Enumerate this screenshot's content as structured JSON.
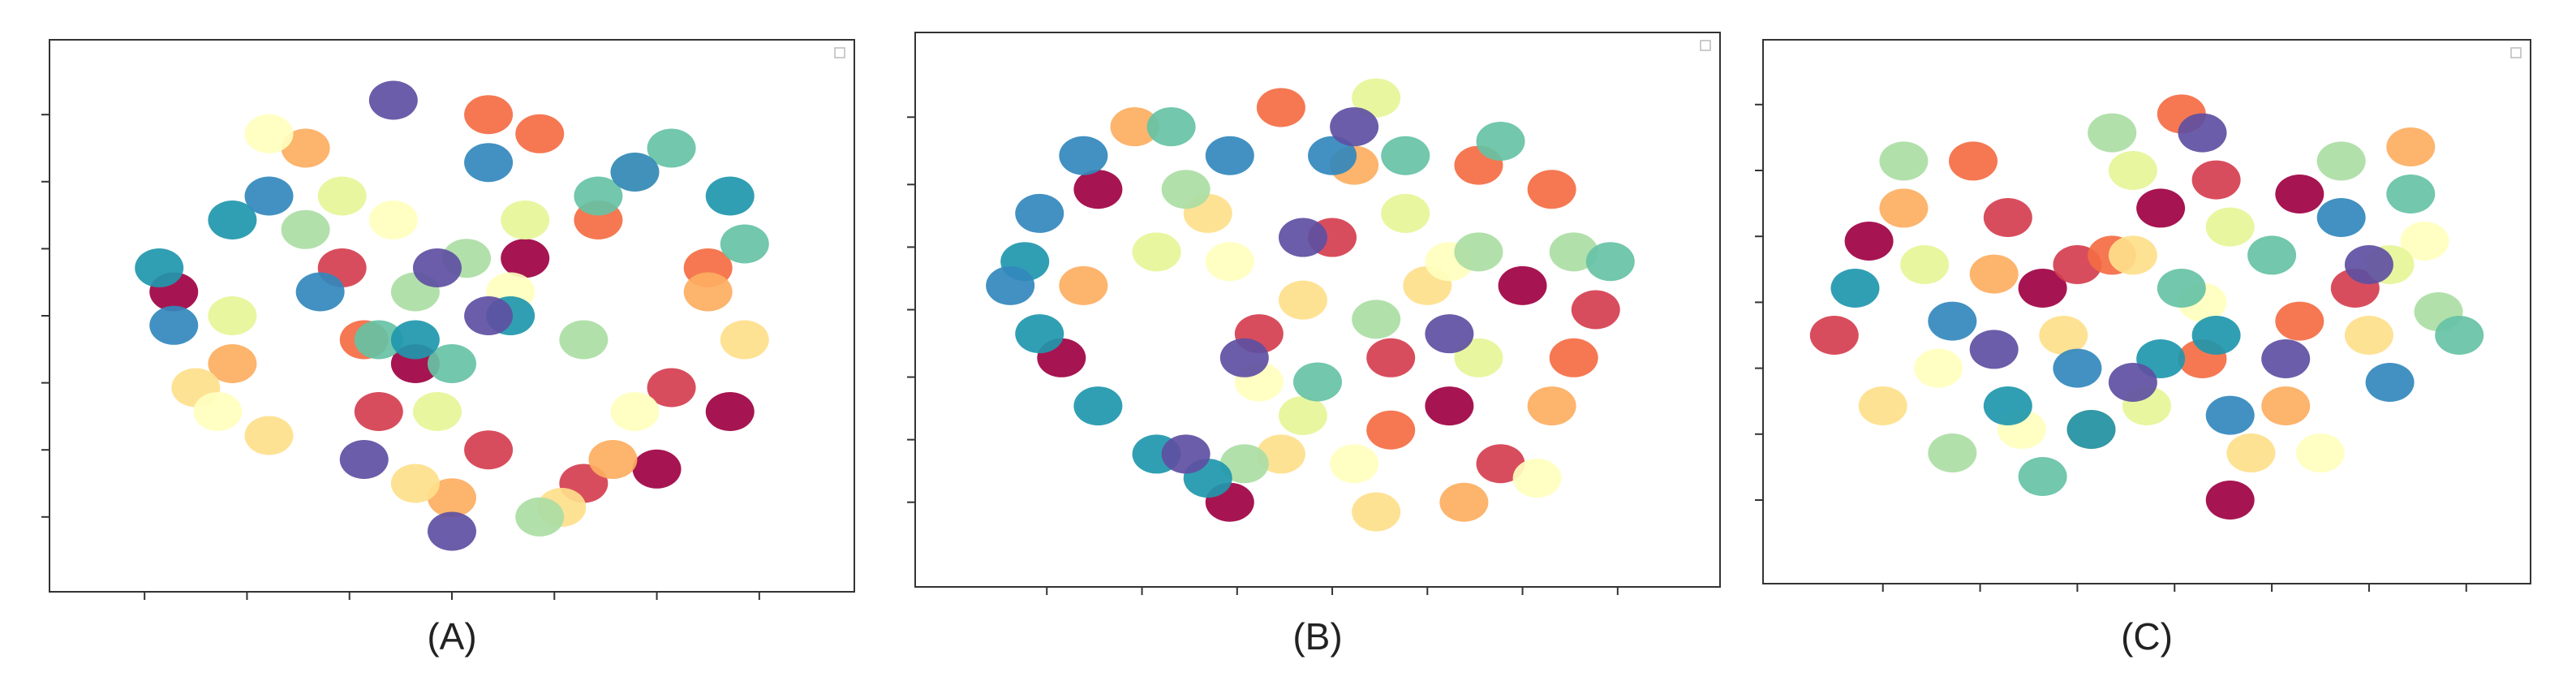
{
  "chart_data": [
    {
      "type": "scatter",
      "label": "(A)",
      "xlim": [
        0,
        100
      ],
      "ylim": [
        0,
        100
      ],
      "xticks": [
        8,
        22,
        36,
        50,
        64,
        78,
        92
      ],
      "yticks": [
        8,
        22,
        36,
        50,
        64,
        78,
        92
      ],
      "series": [
        {
          "color": "#9e0142",
          "x": [
            12,
            45,
            78,
            88,
            60
          ],
          "y": [
            55,
            40,
            18,
            30,
            62
          ]
        },
        {
          "color": "#d53e4f",
          "x": [
            40,
            55,
            68,
            80,
            35
          ],
          "y": [
            30,
            22,
            15,
            35,
            60
          ]
        },
        {
          "color": "#f46d43",
          "x": [
            55,
            62,
            70,
            38,
            85
          ],
          "y": [
            92,
            88,
            70,
            45,
            60
          ]
        },
        {
          "color": "#fdae61",
          "x": [
            30,
            72,
            85,
            20,
            50
          ],
          "y": [
            85,
            20,
            55,
            40,
            12
          ]
        },
        {
          "color": "#fee08b",
          "x": [
            15,
            25,
            45,
            65,
            90
          ],
          "y": [
            35,
            25,
            15,
            10,
            45
          ]
        },
        {
          "color": "#ffffbf",
          "x": [
            25,
            18,
            75,
            42,
            58
          ],
          "y": [
            88,
            30,
            30,
            70,
            55
          ]
        },
        {
          "color": "#e6f598",
          "x": [
            35,
            60,
            75,
            48,
            20
          ],
          "y": [
            75,
            70,
            80,
            30,
            50
          ]
        },
        {
          "color": "#abdda4",
          "x": [
            45,
            52,
            68,
            30,
            62
          ],
          "y": [
            55,
            62,
            45,
            68,
            8
          ]
        },
        {
          "color": "#66c2a5",
          "x": [
            80,
            90,
            70,
            50,
            40
          ],
          "y": [
            85,
            65,
            75,
            40,
            45
          ]
        },
        {
          "color": "#1f97ad",
          "x": [
            20,
            10,
            45,
            58,
            88
          ],
          "y": [
            70,
            60,
            45,
            50,
            75
          ]
        },
        {
          "color": "#3288bd",
          "x": [
            25,
            32,
            55,
            75,
            12
          ],
          "y": [
            75,
            55,
            82,
            80,
            48
          ]
        },
        {
          "color": "#5e4fa2",
          "x": [
            42,
            48,
            38,
            55,
            50
          ],
          "y": [
            95,
            60,
            20,
            50,
            5
          ]
        }
      ]
    },
    {
      "type": "scatter",
      "label": "(B)",
      "xlim": [
        0,
        100
      ],
      "ylim": [
        0,
        100
      ],
      "xticks": [
        13,
        26,
        39,
        52,
        65,
        78,
        91
      ],
      "yticks": [
        10,
        23,
        36,
        50,
        63,
        76,
        90
      ],
      "series": [
        {
          "color": "#9e0142",
          "x": [
            20,
            15,
            68,
            78,
            38
          ],
          "y": [
            75,
            40,
            30,
            55,
            10
          ]
        },
        {
          "color": "#d53e4f",
          "x": [
            52,
            60,
            75,
            88,
            42
          ],
          "y": [
            65,
            40,
            18,
            50,
            45
          ]
        },
        {
          "color": "#f46d43",
          "x": [
            45,
            72,
            85,
            60,
            82
          ],
          "y": [
            92,
            80,
            40,
            25,
            75
          ]
        },
        {
          "color": "#fdae61",
          "x": [
            25,
            18,
            55,
            82,
            70
          ],
          "y": [
            88,
            55,
            80,
            30,
            10
          ]
        },
        {
          "color": "#fee08b",
          "x": [
            35,
            48,
            65,
            45,
            58
          ],
          "y": [
            70,
            52,
            55,
            20,
            8
          ]
        },
        {
          "color": "#ffffbf",
          "x": [
            38,
            42,
            55,
            68,
            80
          ],
          "y": [
            60,
            35,
            18,
            60,
            15
          ]
        },
        {
          "color": "#e6f598",
          "x": [
            28,
            48,
            62,
            72,
            58
          ],
          "y": [
            62,
            28,
            70,
            40,
            94
          ]
        },
        {
          "color": "#abdda4",
          "x": [
            32,
            58,
            72,
            85,
            40
          ],
          "y": [
            75,
            48,
            62,
            62,
            18
          ]
        },
        {
          "color": "#66c2a5",
          "x": [
            62,
            75,
            90,
            30,
            50
          ],
          "y": [
            82,
            85,
            60,
            88,
            35
          ]
        },
        {
          "color": "#1f97ad",
          "x": [
            10,
            20,
            28,
            12,
            35
          ],
          "y": [
            60,
            30,
            20,
            45,
            15
          ]
        },
        {
          "color": "#3288bd",
          "x": [
            12,
            18,
            38,
            52,
            8
          ],
          "y": [
            70,
            82,
            82,
            82,
            55
          ]
        },
        {
          "color": "#5e4fa2",
          "x": [
            40,
            32,
            55,
            48,
            68
          ],
          "y": [
            40,
            20,
            88,
            65,
            45
          ]
        }
      ]
    },
    {
      "type": "scatter",
      "label": "(C)",
      "xlim": [
        0,
        100
      ],
      "ylim": [
        0,
        100
      ],
      "xticks": [
        12,
        26,
        40,
        54,
        68,
        82,
        96
      ],
      "yticks": [
        10,
        24,
        38,
        52,
        66,
        80,
        94
      ],
      "series": [
        {
          "color": "#9e0142",
          "x": [
            10,
            35,
            52,
            72,
            62
          ],
          "y": [
            65,
            55,
            72,
            75,
            10
          ]
        },
        {
          "color": "#d53e4f",
          "x": [
            5,
            40,
            60,
            80,
            30
          ],
          "y": [
            45,
            60,
            78,
            55,
            70
          ]
        },
        {
          "color": "#f46d43",
          "x": [
            25,
            45,
            55,
            58,
            72
          ],
          "y": [
            82,
            62,
            92,
            40,
            48
          ]
        },
        {
          "color": "#fdae61",
          "x": [
            15,
            28,
            70,
            88,
            42
          ],
          "y": [
            72,
            58,
            30,
            85,
            25
          ]
        },
        {
          "color": "#fee08b",
          "x": [
            12,
            38,
            65,
            82,
            48
          ],
          "y": [
            30,
            45,
            20,
            45,
            62
          ]
        },
        {
          "color": "#ffffbf",
          "x": [
            20,
            32,
            58,
            75,
            90
          ],
          "y": [
            38,
            25,
            52,
            20,
            65
          ]
        },
        {
          "color": "#e6f598",
          "x": [
            18,
            48,
            62,
            85,
            50
          ],
          "y": [
            60,
            80,
            68,
            60,
            30
          ]
        },
        {
          "color": "#abdda4",
          "x": [
            15,
            45,
            78,
            92,
            22
          ],
          "y": [
            82,
            88,
            82,
            50,
            20
          ]
        },
        {
          "color": "#66c2a5",
          "x": [
            68,
            88,
            95,
            55,
            35
          ],
          "y": [
            62,
            75,
            45,
            55,
            15
          ]
        },
        {
          "color": "#1f97ad",
          "x": [
            8,
            30,
            42,
            52,
            60
          ],
          "y": [
            55,
            30,
            25,
            40,
            45
          ]
        },
        {
          "color": "#3288bd",
          "x": [
            22,
            40,
            62,
            78,
            85
          ],
          "y": [
            48,
            38,
            28,
            70,
            35
          ]
        },
        {
          "color": "#5e4fa2",
          "x": [
            28,
            48,
            70,
            58,
            82
          ],
          "y": [
            42,
            35,
            40,
            88,
            60
          ]
        }
      ]
    }
  ]
}
